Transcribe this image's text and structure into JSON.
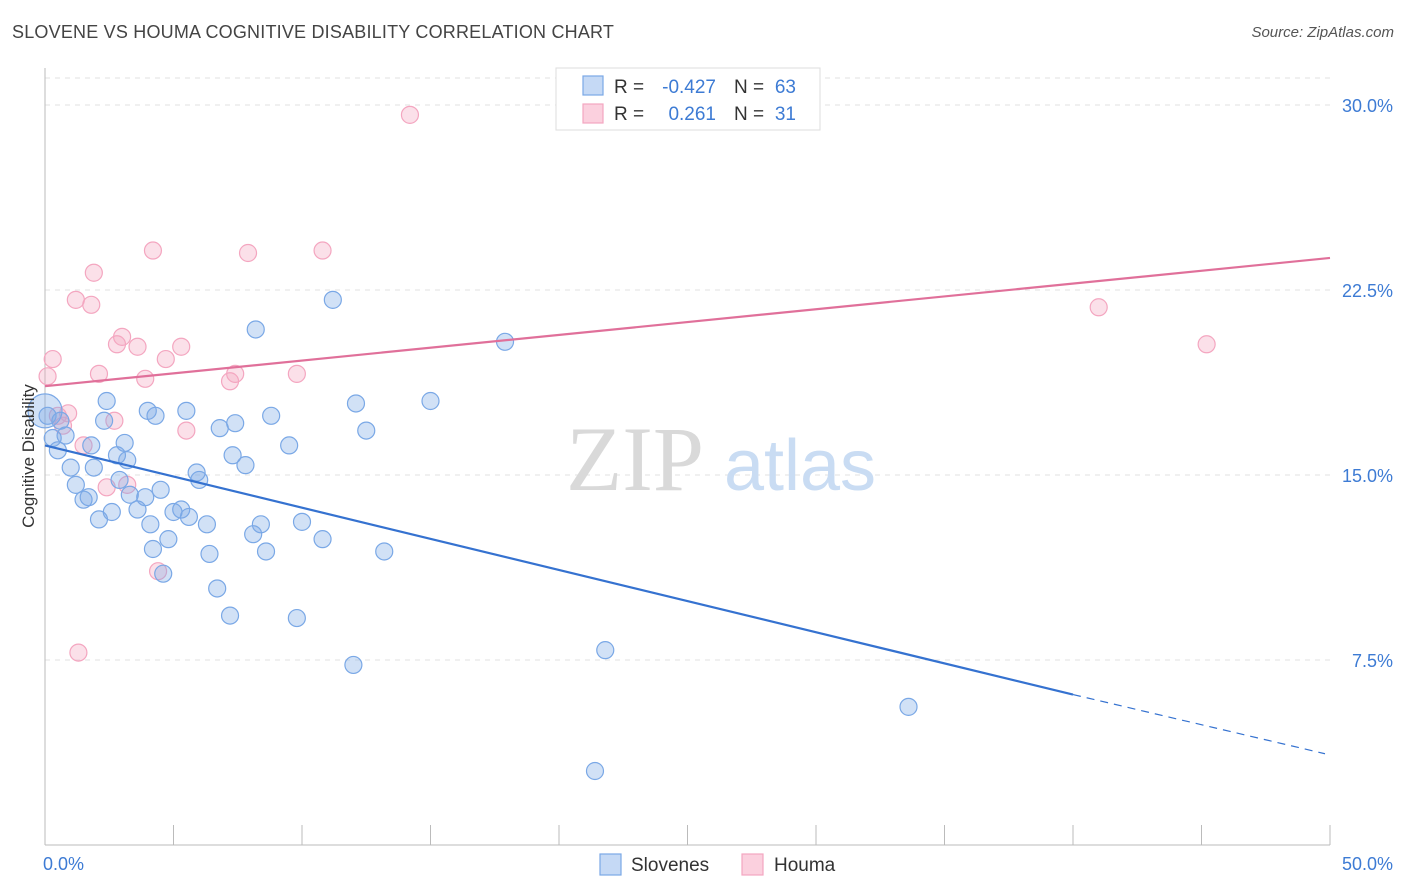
{
  "header": {
    "title": "SLOVENE VS HOUMA COGNITIVE DISABILITY CORRELATION CHART",
    "source": "Source: ZipAtlas.com"
  },
  "watermark": {
    "zip": "ZIP",
    "atlas": "atlas"
  },
  "chart_data": {
    "type": "scatter",
    "title": "SLOVENE VS HOUMA COGNITIVE DISABILITY CORRELATION CHART",
    "xlabel": "",
    "ylabel": "Cognitive Disability",
    "xlim": [
      0,
      50
    ],
    "ylim": [
      0,
      31.5
    ],
    "x_tick_labels": [
      {
        "value": 0,
        "label": "0.0%"
      },
      {
        "value": 50,
        "label": "50.0%"
      }
    ],
    "y_tick_labels": [
      {
        "value": 7.5,
        "label": "7.5%"
      },
      {
        "value": 15,
        "label": "15.0%"
      },
      {
        "value": 22.5,
        "label": "22.5%"
      },
      {
        "value": 30,
        "label": "30.0%"
      }
    ],
    "grid": true,
    "legend_placement": "top-center",
    "stats": [
      {
        "r_label": "R =",
        "r": "-0.427",
        "n_label": "N =",
        "n": "63"
      },
      {
        "r_label": "R =",
        "r": "0.261",
        "n_label": "N =",
        "n": "31"
      }
    ],
    "series": [
      {
        "name": "Slovenes",
        "color": "#7aa8e6",
        "line_color": "#3572d0",
        "trend": {
          "x0": 0,
          "y0": 16.2,
          "x1": 40,
          "y1": 6.1,
          "dash_to_x": 50,
          "dash_to_y": 3.7
        },
        "points": [
          [
            0.1,
            17.4
          ],
          [
            0.3,
            16.5
          ],
          [
            0.5,
            16.0
          ],
          [
            0.6,
            17.2
          ],
          [
            0.8,
            16.6
          ],
          [
            1.0,
            15.3
          ],
          [
            1.2,
            14.6
          ],
          [
            1.5,
            14.0
          ],
          [
            1.7,
            14.1
          ],
          [
            1.8,
            16.2
          ],
          [
            1.9,
            15.3
          ],
          [
            2.1,
            13.2
          ],
          [
            2.3,
            17.2
          ],
          [
            2.4,
            18.0
          ],
          [
            2.6,
            13.5
          ],
          [
            2.8,
            15.8
          ],
          [
            2.9,
            14.8
          ],
          [
            3.1,
            16.3
          ],
          [
            3.2,
            15.6
          ],
          [
            3.3,
            14.2
          ],
          [
            3.6,
            13.6
          ],
          [
            3.9,
            14.1
          ],
          [
            4.0,
            17.6
          ],
          [
            4.2,
            12.0
          ],
          [
            4.3,
            17.4
          ],
          [
            4.5,
            14.4
          ],
          [
            4.6,
            11.0
          ],
          [
            4.8,
            12.4
          ],
          [
            5.0,
            13.5
          ],
          [
            5.3,
            13.6
          ],
          [
            5.5,
            17.6
          ],
          [
            5.6,
            13.3
          ],
          [
            5.9,
            15.1
          ],
          [
            6.0,
            14.8
          ],
          [
            6.3,
            13.0
          ],
          [
            6.4,
            11.8
          ],
          [
            6.7,
            10.4
          ],
          [
            6.8,
            16.9
          ],
          [
            7.2,
            9.3
          ],
          [
            7.3,
            15.8
          ],
          [
            7.4,
            17.1
          ],
          [
            7.8,
            15.4
          ],
          [
            8.1,
            12.6
          ],
          [
            8.2,
            20.9
          ],
          [
            8.4,
            13.0
          ],
          [
            8.6,
            11.9
          ],
          [
            8.8,
            17.4
          ],
          [
            9.5,
            16.2
          ],
          [
            9.8,
            9.2
          ],
          [
            10.0,
            13.1
          ],
          [
            10.8,
            12.4
          ],
          [
            11.2,
            22.1
          ],
          [
            12.0,
            7.3
          ],
          [
            12.1,
            17.9
          ],
          [
            12.5,
            16.8
          ],
          [
            13.2,
            11.9
          ],
          [
            15.0,
            18.0
          ],
          [
            17.9,
            20.4
          ],
          [
            21.4,
            3.0
          ],
          [
            21.8,
            7.9
          ],
          [
            33.6,
            5.6
          ],
          [
            0.0,
            17.6
          ],
          [
            4.1,
            13.0
          ]
        ]
      },
      {
        "name": "Houma",
        "color": "#f4a6c0",
        "line_color": "#e0709a",
        "trend": {
          "x0": 0,
          "y0": 18.6,
          "x1": 50,
          "y1": 23.8
        },
        "points": [
          [
            0.1,
            19.0
          ],
          [
            0.3,
            19.7
          ],
          [
            0.5,
            17.4
          ],
          [
            0.7,
            17.0
          ],
          [
            0.9,
            17.5
          ],
          [
            1.2,
            22.1
          ],
          [
            1.3,
            7.8
          ],
          [
            1.5,
            16.2
          ],
          [
            1.8,
            21.9
          ],
          [
            1.9,
            23.2
          ],
          [
            2.1,
            19.1
          ],
          [
            2.7,
            17.2
          ],
          [
            2.8,
            20.3
          ],
          [
            3.0,
            20.6
          ],
          [
            3.2,
            14.6
          ],
          [
            3.6,
            20.2
          ],
          [
            3.9,
            18.9
          ],
          [
            4.2,
            24.1
          ],
          [
            4.4,
            11.1
          ],
          [
            4.7,
            19.7
          ],
          [
            5.3,
            20.2
          ],
          [
            5.5,
            16.8
          ],
          [
            7.2,
            18.8
          ],
          [
            7.4,
            19.1
          ],
          [
            7.9,
            24.0
          ],
          [
            9.8,
            19.1
          ],
          [
            10.8,
            24.1
          ],
          [
            14.2,
            29.6
          ],
          [
            41.0,
            21.8
          ],
          [
            45.2,
            20.3
          ],
          [
            2.4,
            14.5
          ]
        ]
      }
    ]
  }
}
